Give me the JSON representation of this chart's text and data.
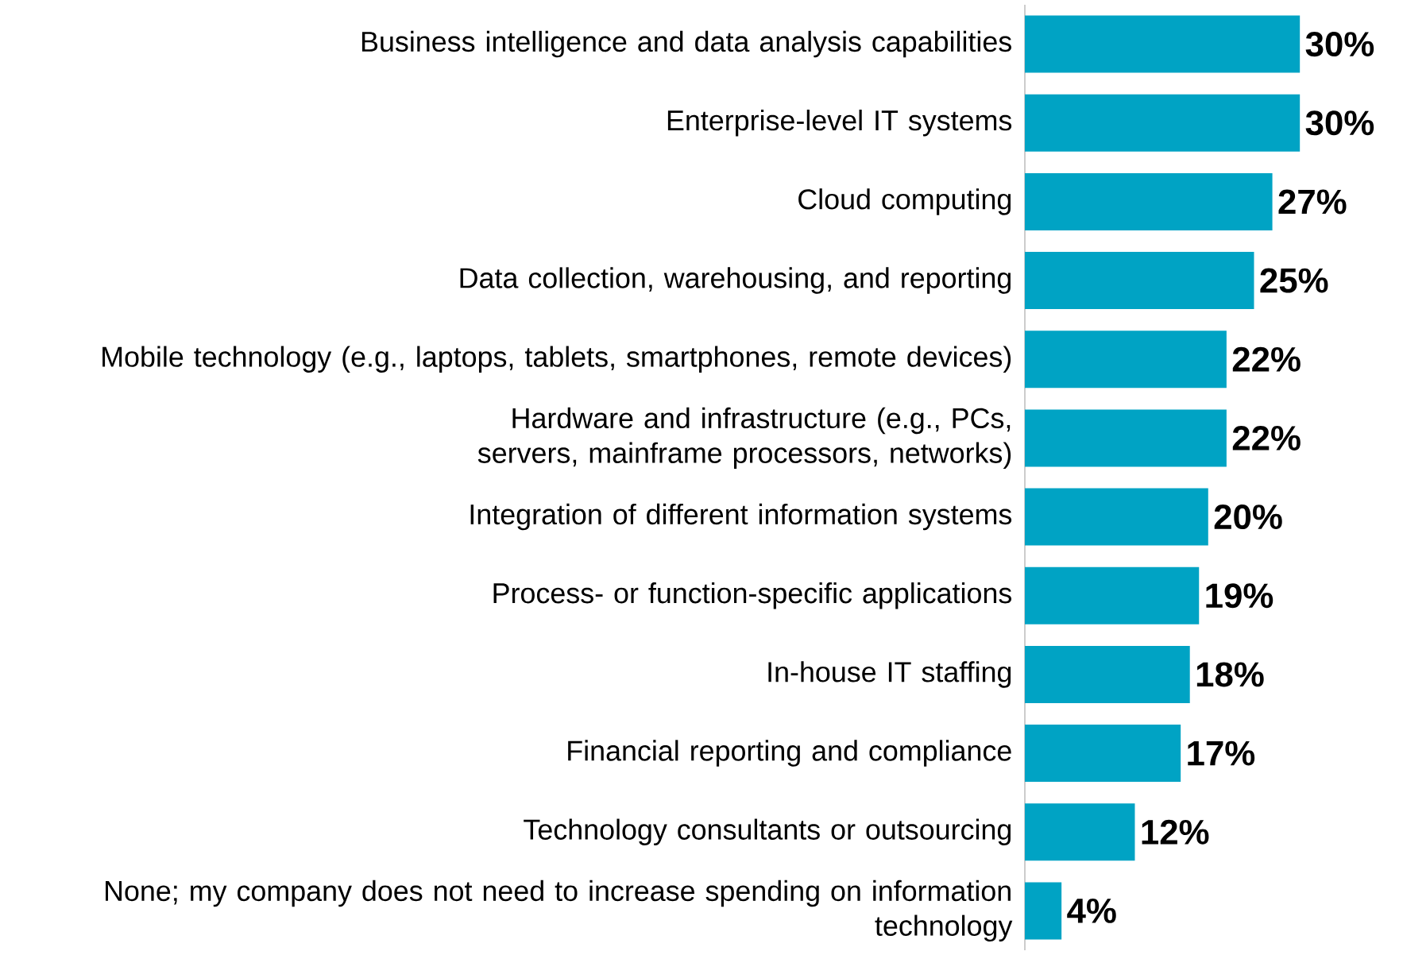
{
  "chart_data": {
    "type": "bar",
    "orientation": "horizontal",
    "color": "#00a3c4",
    "categories": [
      "Business intelligence and data analysis capabilities",
      "Enterprise-level IT systems",
      "Cloud computing",
      "Data collection, warehousing, and reporting",
      "Mobile technology (e.g., laptops, tablets, smartphones, remote devices)",
      "Hardware and infrastructure (e.g., PCs, servers, mainframe processors, networks)",
      "Integration of different information systems",
      "Process- or function-specific applications",
      "In-house IT staffing",
      "Financial reporting and compliance",
      "Technology consultants or outsourcing",
      "None; my company does not need to increase spending on information technology"
    ],
    "values": [
      30,
      30,
      27,
      25,
      22,
      22,
      20,
      19,
      18,
      17,
      12,
      4
    ],
    "value_labels": [
      "30%",
      "30%",
      "27%",
      "25%",
      "22%",
      "22%",
      "20%",
      "19%",
      "18%",
      "17%",
      "12%",
      "4%"
    ]
  }
}
